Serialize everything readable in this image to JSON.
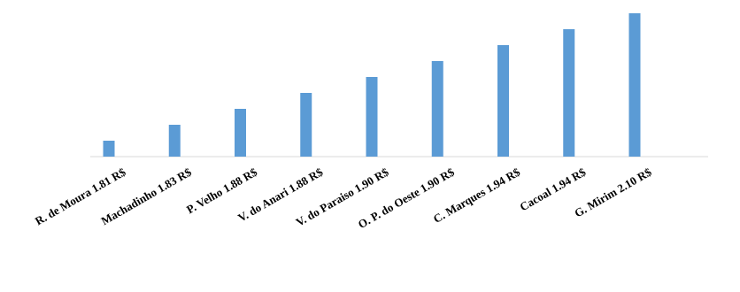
{
  "chart_data": {
    "type": "bar",
    "categories": [
      "R. de Moura 1.81 R$",
      "Machadinho 1.83 R$",
      "P. Velho 1.88 R$",
      "V. do Anari 1.88 R$",
      "V. do Paraiso 1.90 R$",
      "O. P. do Oeste 1.90 R$",
      "C. Marques 1.94 R$",
      "Cacoal 1.94 R$",
      "G. Mirim 2.10 R$"
    ],
    "values": [
      1,
      2,
      3,
      4,
      5,
      6,
      7,
      8,
      9
    ],
    "ylim": [
      0,
      10
    ],
    "grid": false,
    "legend": "none",
    "title": "",
    "xlabel": "",
    "ylabel": "",
    "colors": {
      "bar": "#5b9bd5",
      "axis": "#d9d9d9",
      "text": "#000000"
    }
  }
}
